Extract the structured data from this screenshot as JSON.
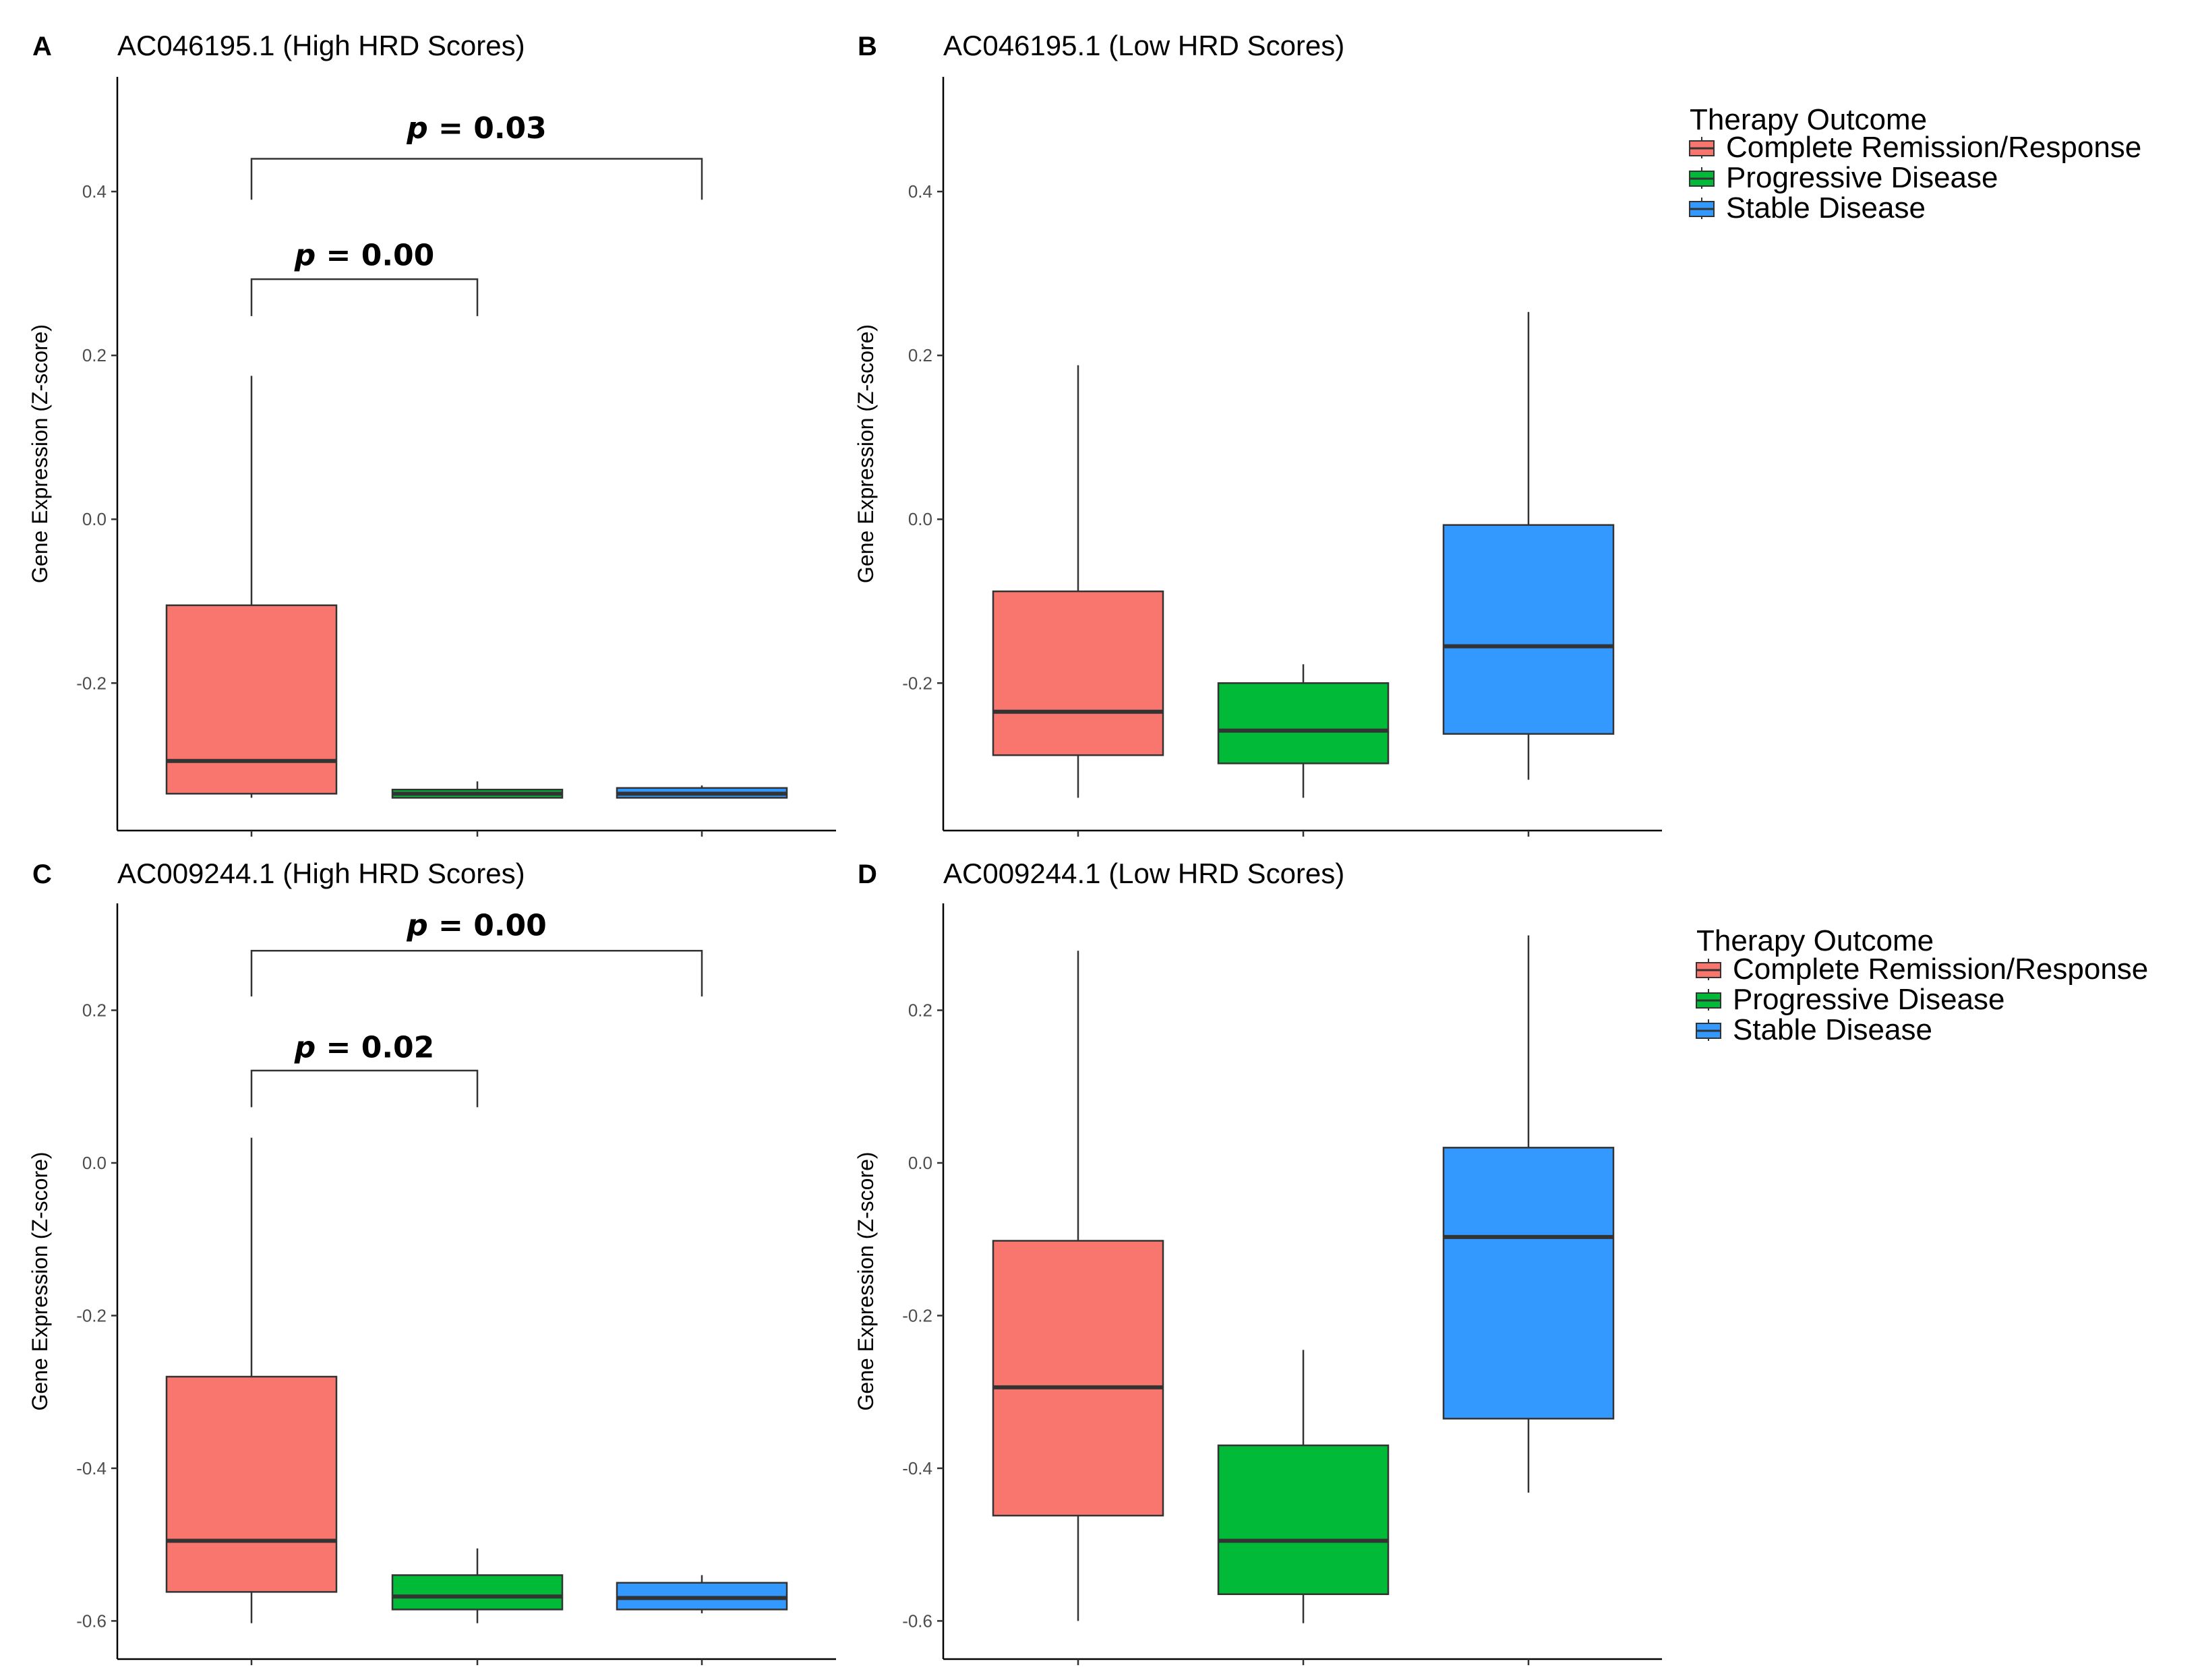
{
  "colors": {
    "complete_remission": "#F8766D",
    "progressive_disease": "#00BA38",
    "stable_disease": "#3399FF",
    "box_stroke": "#333333",
    "axis": "#000000"
  },
  "chart_data": [
    {
      "type": "box",
      "panel": "A",
      "title": "AC046195.1 (High HRD Scores)",
      "xlabel": "",
      "ylabel": "Gene Expression (Z-score)",
      "ylim": [
        -0.38,
        0.54
      ],
      "yticks": [
        -0.2,
        0.0,
        0.2,
        0.4
      ],
      "ytick_labels": [
        "-0.2",
        "0.0",
        "0.2",
        "0.4"
      ],
      "categories": [
        "Complete Remission/Response",
        "Progressive Disease",
        "Stable Disease"
      ],
      "boxes": [
        {
          "name": "Complete Remission/Response",
          "low": -0.34,
          "q1": -0.335,
          "median": -0.295,
          "q3": -0.105,
          "high": 0.175
        },
        {
          "name": "Progressive Disease",
          "low": -0.34,
          "q1": -0.34,
          "median": -0.335,
          "q3": -0.33,
          "high": -0.32
        },
        {
          "name": "Stable Disease",
          "low": -0.34,
          "q1": -0.34,
          "median": -0.335,
          "q3": -0.328,
          "high": -0.325
        }
      ],
      "annotations": [
        {
          "label_prefix": "p",
          "label_value": " = 0.03",
          "from": 0,
          "to": 2,
          "y_line": 0.44,
          "y_drop": 0.39,
          "y_text": 0.465
        },
        {
          "label_prefix": "p",
          "label_value": " = 0.00",
          "from": 0,
          "to": 1,
          "y_line": 0.293,
          "y_drop": 0.248,
          "y_text": 0.31
        }
      ]
    },
    {
      "type": "box",
      "panel": "B",
      "title": "AC046195.1 (Low HRD Scores)",
      "xlabel": "",
      "ylabel": "Gene Expression (Z-score)",
      "ylim": [
        -0.38,
        0.54
      ],
      "yticks": [
        -0.2,
        0.0,
        0.2,
        0.4
      ],
      "ytick_labels": [
        "-0.2",
        "0.0",
        "0.2",
        "0.4"
      ],
      "categories": [
        "Complete Remission/Response",
        "Progressive Disease",
        "Stable Disease"
      ],
      "boxes": [
        {
          "name": "Complete Remission/Response",
          "low": -0.34,
          "q1": -0.288,
          "median": -0.235,
          "q3": -0.088,
          "high": 0.188
        },
        {
          "name": "Progressive Disease",
          "low": -0.34,
          "q1": -0.298,
          "median": -0.258,
          "q3": -0.2,
          "high": -0.177
        },
        {
          "name": "Stable Disease",
          "low": -0.318,
          "q1": -0.262,
          "median": -0.155,
          "q3": -0.007,
          "high": 0.253
        }
      ],
      "annotations": []
    },
    {
      "type": "box",
      "panel": "C",
      "title": "AC009244.1 (High HRD Scores)",
      "xlabel": "",
      "ylabel": "Gene Expression (Z-score)",
      "ylim": [
        -0.65,
        0.34
      ],
      "yticks": [
        -0.6,
        -0.4,
        -0.2,
        0.0,
        0.2
      ],
      "ytick_labels": [
        "-0.6",
        "-0.4",
        "-0.2",
        "0.0",
        "0.2"
      ],
      "categories": [
        "Complete Remission/Response",
        "Progressive Disease",
        "Stable Disease"
      ],
      "boxes": [
        {
          "name": "Complete Remission/Response",
          "low": -0.603,
          "q1": -0.562,
          "median": -0.495,
          "q3": -0.28,
          "high": 0.033
        },
        {
          "name": "Progressive Disease",
          "low": -0.603,
          "q1": -0.585,
          "median": -0.568,
          "q3": -0.54,
          "high": -0.505
        },
        {
          "name": "Stable Disease",
          "low": -0.59,
          "q1": -0.585,
          "median": -0.57,
          "q3": -0.55,
          "high": -0.54
        }
      ],
      "annotations": [
        {
          "label_prefix": "p",
          "label_value": " = 0.00",
          "from": 0,
          "to": 2,
          "y_line": 0.278,
          "y_drop": 0.218,
          "y_text": 0.298
        },
        {
          "label_prefix": "p",
          "label_value": " = 0.02",
          "from": 0,
          "to": 1,
          "y_line": 0.121,
          "y_drop": 0.073,
          "y_text": 0.138
        }
      ]
    },
    {
      "type": "box",
      "panel": "D",
      "title": "AC009244.1 (Low HRD Scores)",
      "xlabel": "",
      "ylabel": "Gene Expression (Z-score)",
      "ylim": [
        -0.65,
        0.34
      ],
      "yticks": [
        -0.6,
        -0.4,
        -0.2,
        0.0,
        0.2
      ],
      "ytick_labels": [
        "-0.6",
        "-0.4",
        "-0.2",
        "0.0",
        "0.2"
      ],
      "categories": [
        "Complete Remission/Response",
        "Progressive Disease",
        "Stable Disease"
      ],
      "boxes": [
        {
          "name": "Complete Remission/Response",
          "low": -0.6,
          "q1": -0.462,
          "median": -0.294,
          "q3": -0.102,
          "high": 0.278
        },
        {
          "name": "Progressive Disease",
          "low": -0.603,
          "q1": -0.565,
          "median": -0.495,
          "q3": -0.37,
          "high": -0.245
        },
        {
          "name": "Stable Disease",
          "low": -0.432,
          "q1": -0.335,
          "median": -0.097,
          "q3": 0.02,
          "high": 0.298
        }
      ],
      "annotations": []
    }
  ],
  "legends": [
    {
      "title": "Therapy Outcome",
      "entries": [
        "Complete Remission/Response",
        "Progressive Disease",
        "Stable Disease"
      ]
    },
    {
      "title": "Therapy Outcome",
      "entries": [
        "Complete Remission/Response",
        "Progressive Disease",
        "Stable Disease"
      ]
    }
  ]
}
